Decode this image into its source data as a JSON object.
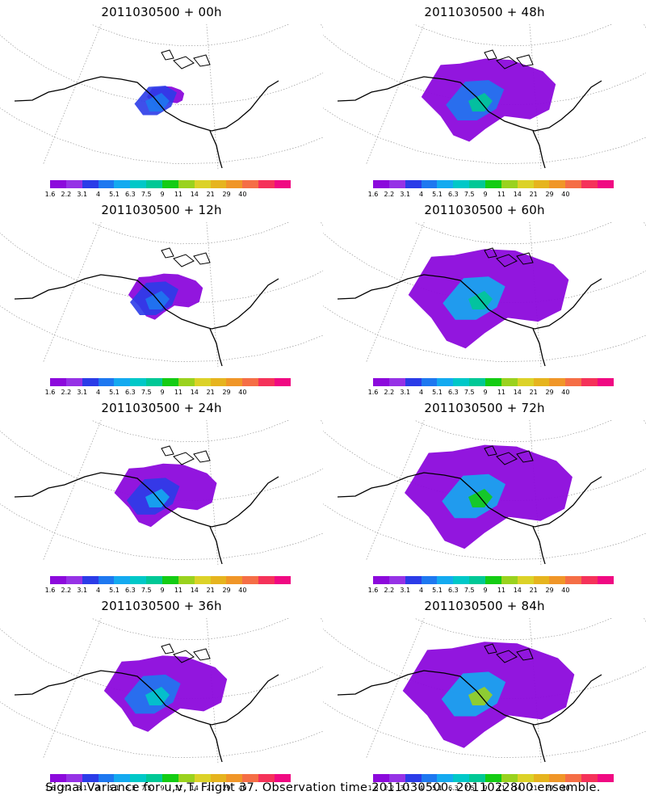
{
  "footer": "Signal Variance for u,v,T. Flight 37. Observation time 2011030500. 2011022800 ensemble.",
  "colorbar": {
    "colors": [
      "#8c0adc",
      "#9632e6",
      "#2b3ce8",
      "#1e78f0",
      "#14aaf0",
      "#00c8c8",
      "#00c896",
      "#14cc14",
      "#9ad21e",
      "#dcd228",
      "#e6b41e",
      "#f09628",
      "#f56e46",
      "#f5325a",
      "#f00a82"
    ],
    "ticks": [
      "1.6",
      "2.2",
      "3.1",
      "4",
      "5.1",
      "6.3",
      "7.5",
      "9",
      "11",
      "14",
      "21",
      "29",
      "40"
    ]
  },
  "panels": [
    {
      "title": "2011030500 + 00h",
      "coverage": 0.2,
      "intensity": 0.12
    },
    {
      "title": "2011030500 + 48h",
      "coverage": 0.72,
      "intensity": 0.38
    },
    {
      "title": "2011030500 + 12h",
      "coverage": 0.4,
      "intensity": 0.14
    },
    {
      "title": "2011030500 + 60h",
      "coverage": 0.86,
      "intensity": 0.42
    },
    {
      "title": "2011030500 + 24h",
      "coverage": 0.55,
      "intensity": 0.2
    },
    {
      "title": "2011030500 + 72h",
      "coverage": 0.9,
      "intensity": 0.48
    },
    {
      "title": "2011030500 + 36h",
      "coverage": 0.66,
      "intensity": 0.26
    },
    {
      "title": "2011030500 + 84h",
      "coverage": 0.92,
      "intensity": 0.55
    }
  ]
}
